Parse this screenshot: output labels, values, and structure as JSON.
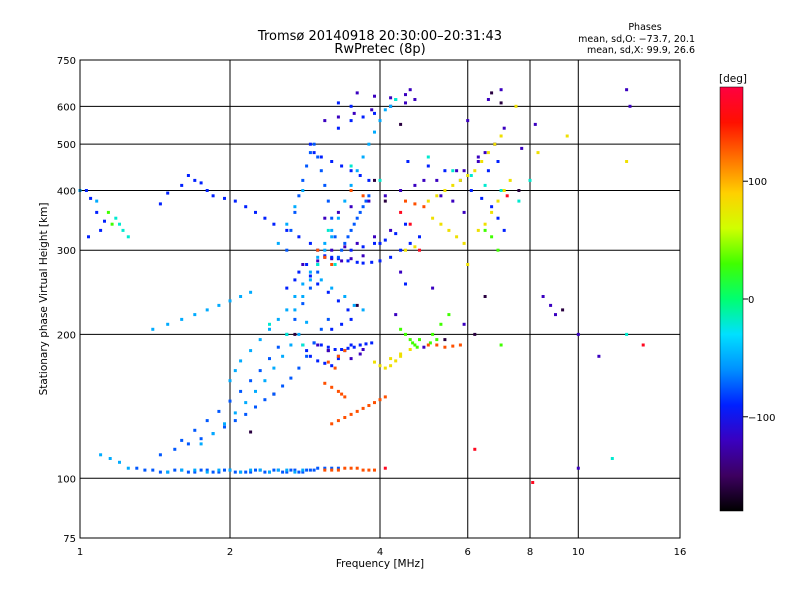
{
  "chart_data": {
    "type": "scatter",
    "title": "Tromsø 20140918 20:30:00–20:31:43",
    "subtitle": "RwPretec (8p)",
    "xlabel": "Frequency [MHz]",
    "ylabel": "Stationary phase Virtual Height [km]",
    "x_scale": "log",
    "y_scale": "log",
    "xlim": [
      1,
      16
    ],
    "ylim": [
      75,
      750
    ],
    "grid": true,
    "x_ticks": [
      1,
      2,
      4,
      6,
      8,
      10,
      16
    ],
    "x_tick_labels": [
      "1",
      "2",
      "4",
      "6",
      "8",
      "10",
      "16"
    ],
    "y_ticks": [
      75,
      100,
      200,
      300,
      400,
      500,
      600,
      750
    ],
    "y_tick_labels": [
      "75",
      "100",
      "200",
      "300",
      "400",
      "500",
      "600",
      "750"
    ],
    "phases_legend": {
      "title": "Phases",
      "line1": "mean, sd,O: −73.7, 20.1",
      "line2": "mean, sd,X:  99.9, 26.6"
    },
    "colorbar": {
      "label": "[deg]",
      "range": [
        -180,
        180
      ],
      "ticks": [
        100,
        0,
        -100
      ],
      "tick_labels": [
        "100",
        "0",
        "−100"
      ],
      "colors": [
        "#000000",
        "#3d0060",
        "#3a00c0",
        "#0020ff",
        "#0090ff",
        "#00e0ff",
        "#00ff70",
        "#40ff00",
        "#d0ff00",
        "#ffd000",
        "#ff7000",
        "#ff1000",
        "#ff0040"
      ]
    },
    "series": [
      {
        "phase": -160,
        "x": [
          2.2,
          2.45,
          2.7,
          3.15,
          3.6,
          3.9,
          4.1,
          4.4,
          5.4,
          6.2,
          6.7,
          7.0,
          7.6,
          9.3,
          6.5
        ],
        "y": [
          125,
          150,
          200,
          185,
          230,
          420,
          380,
          550,
          195,
          200,
          640,
          610,
          400,
          225,
          240
        ]
      },
      {
        "phase": -120,
        "x": [
          2.8,
          3.0,
          3.1,
          3.2,
          3.35,
          3.5,
          3.7,
          3.2,
          3.4,
          3.6,
          3.9,
          4.2,
          3.1,
          3.3,
          3.5,
          3.8,
          4.1,
          4.4,
          4.7,
          5.2,
          5.7,
          6.3,
          6.5,
          6.8,
          7.1,
          6.0,
          6.6,
          7.0,
          3.1,
          3.3,
          3.55,
          3.85,
          4.2,
          4.5,
          4.7,
          3.6,
          3.9,
          4.2,
          4.5,
          4.6,
          4.9,
          5.3,
          5.6,
          5.9,
          3.0,
          3.15,
          3.3,
          3.5,
          3.65,
          3.7,
          4.9,
          8.5,
          8.8,
          9.0,
          10.0,
          11.0,
          12.5,
          12.7,
          8.2,
          7.7,
          6.3,
          5.9,
          4.4,
          10.0,
          4.3,
          5.9,
          5.1
        ],
        "y": [
          280,
          285,
          290,
          288,
          285,
          288,
          292,
          300,
          305,
          310,
          320,
          330,
          350,
          360,
          370,
          380,
          390,
          400,
          410,
          420,
          440,
          460,
          480,
          500,
          540,
          560,
          620,
          650,
          560,
          570,
          580,
          590,
          600,
          610,
          620,
          640,
          630,
          625,
          635,
          650,
          420,
          390,
          380,
          360,
          190,
          185,
          180,
          178,
          182,
          186,
          188,
          240,
          230,
          220,
          200,
          180,
          650,
          600,
          550,
          490,
          470,
          440,
          270,
          105,
          220,
          210,
          250
        ]
      },
      {
        "phase": -90,
        "x": [
          1.03,
          1.05,
          1.08,
          1.12,
          1.1,
          1.04,
          1.45,
          1.5,
          1.6,
          1.65,
          1.7,
          1.75,
          1.8,
          1.85,
          1.95,
          2.05,
          2.15,
          2.25,
          2.35,
          2.45,
          2.6,
          2.75,
          2.9,
          3.0,
          3.1,
          3.2,
          3.3,
          3.45,
          3.6,
          3.7,
          3.85,
          4.0,
          4.2,
          4.4,
          4.6,
          4.8,
          3.5,
          3.7,
          3.9,
          4.1,
          4.3,
          4.5,
          4.55,
          5.0,
          5.4,
          5.8,
          6.1,
          6.4,
          6.7,
          6.9,
          7.1,
          6.6,
          6.9,
          3.3,
          3.5,
          3.7,
          3.9,
          3.5,
          3.3,
          2.9,
          2.95,
          3.05,
          3.2,
          3.35,
          3.5,
          3.65,
          3.8,
          2.6,
          2.7,
          2.75,
          2.85,
          2.9,
          3.0,
          3.15,
          3.3,
          3.45,
          2.8,
          2.85,
          2.9,
          3.0,
          3.1,
          3.2,
          3.3,
          3.4,
          3.5,
          3.2,
          3.35,
          3.5,
          4.5,
          4.0,
          2.95,
          3.05,
          3.15,
          3.25,
          3.35,
          3.45,
          3.55,
          3.65,
          3.75,
          3.85
        ],
        "y": [
          400,
          385,
          360,
          345,
          330,
          320,
          375,
          395,
          410,
          430,
          420,
          415,
          400,
          390,
          385,
          380,
          370,
          360,
          350,
          340,
          330,
          320,
          310,
          300,
          292,
          290,
          288,
          285,
          283,
          282,
          283,
          285,
          290,
          300,
          310,
          320,
          300,
          305,
          310,
          315,
          325,
          340,
          460,
          450,
          440,
          420,
          400,
          385,
          370,
          350,
          330,
          440,
          460,
          540,
          560,
          570,
          580,
          600,
          610,
          500,
          480,
          470,
          460,
          450,
          440,
          430,
          420,
          250,
          260,
          270,
          280,
          265,
          255,
          245,
          235,
          225,
          190,
          185,
          180,
          176,
          174,
          172,
          178,
          185,
          190,
          205,
          210,
          215,
          255,
          310,
          192,
          190,
          188,
          186,
          186,
          187,
          188,
          190,
          191,
          192
        ]
      },
      {
        "phase": -75,
        "x": [
          1.3,
          1.35,
          1.4,
          1.45,
          1.5,
          1.55,
          1.6,
          1.65,
          1.7,
          1.75,
          1.8,
          1.85,
          1.9,
          1.95,
          2.0,
          2.05,
          2.1,
          2.15,
          2.2,
          2.25,
          2.3,
          2.35,
          2.4,
          2.45,
          2.5,
          2.55,
          2.6,
          2.65,
          2.7,
          2.75,
          2.8,
          2.85,
          2.9,
          2.95,
          3.0,
          3.1,
          3.2,
          3.3,
          1.45,
          1.55,
          1.65,
          1.75,
          1.85,
          1.95,
          2.05,
          2.15,
          2.25,
          2.35,
          2.45,
          2.55,
          2.65,
          2.75,
          2.85,
          2.95,
          3.05,
          3.15,
          1.6,
          1.7,
          1.8,
          1.9,
          2.0,
          2.1,
          2.2,
          2.3,
          2.4,
          2.5,
          2.6,
          2.7,
          2.8,
          2.9,
          3.0,
          2.6,
          2.65,
          2.7,
          2.75,
          2.8,
          2.85,
          2.9,
          2.95,
          3.0,
          3.05,
          3.1,
          3.15,
          3.2,
          3.25,
          3.3,
          3.35,
          3.4,
          3.45,
          3.5,
          3.55,
          3.6,
          3.65,
          3.7,
          3.75,
          3.8
        ],
        "y": [
          105,
          104,
          104,
          103,
          103,
          104,
          104,
          103,
          103,
          104,
          104,
          103,
          103,
          104,
          104,
          103,
          103,
          103,
          103,
          104,
          104,
          103,
          103,
          104,
          104,
          103,
          103,
          104,
          104,
          103,
          103,
          104,
          104,
          104,
          105,
          105,
          105,
          105,
          112,
          115,
          118,
          121,
          124,
          128,
          132,
          136,
          141,
          146,
          150,
          156,
          162,
          170,
          180,
          192,
          205,
          215,
          120,
          126,
          132,
          138,
          145,
          152,
          160,
          168,
          178,
          188,
          200,
          215,
          232,
          250,
          270,
          300,
          330,
          360,
          390,
          420,
          450,
          480,
          500,
          470,
          440,
          410,
          380,
          350,
          320,
          290,
          300,
          310,
          320,
          330,
          340,
          350,
          360,
          370,
          380,
          390
        ]
      },
      {
        "phase": -50,
        "x": [
          1.5,
          1.6,
          1.7,
          1.8,
          1.9,
          2.0,
          2.1,
          2.2,
          2.3,
          2.4,
          2.5,
          2.6,
          2.7,
          2.8,
          1.75,
          1.85,
          1.95,
          2.05,
          2.15,
          2.25,
          2.35,
          2.45,
          2.55,
          2.65,
          2.75,
          2.85,
          2.7,
          2.8,
          2.9,
          3.0,
          3.1,
          3.2,
          2.5,
          2.6,
          2.7,
          2.8,
          1.4,
          1.5,
          1.6,
          1.7,
          1.8,
          1.9,
          2.0,
          2.1,
          2.2,
          2.0,
          2.05,
          2.1,
          2.2,
          2.3,
          2.4,
          2.5,
          2.6,
          2.7,
          2.8,
          2.9,
          3.0,
          3.1,
          3.2,
          3.3,
          3.4,
          3.5,
          3.6,
          3.7,
          3.8,
          3.9,
          4.0,
          4.1,
          4.2,
          4.3,
          1.1,
          1.15,
          1.2,
          1.25,
          1.0,
          1.08,
          3.05,
          3.2,
          3.4,
          3.55,
          3.7
        ],
        "y": [
          103,
          104,
          104,
          103,
          104,
          104,
          103,
          104,
          104,
          103,
          104,
          104,
          103,
          104,
          118,
          124,
          130,
          137,
          144,
          152,
          160,
          170,
          180,
          190,
          200,
          212,
          225,
          240,
          260,
          280,
          300,
          320,
          310,
          340,
          370,
          400,
          205,
          210,
          215,
          220,
          225,
          230,
          235,
          240,
          245,
          160,
          168,
          176,
          185,
          195,
          205,
          215,
          225,
          240,
          255,
          270,
          290,
          310,
          330,
          350,
          380,
          410,
          440,
          470,
          500,
          530,
          560,
          590,
          600,
          620,
          112,
          110,
          108,
          105,
          400,
          380,
          260,
          250,
          240,
          230,
          225
        ]
      },
      {
        "phase": -20,
        "x": [
          1.18,
          1.2,
          1.22,
          1.25,
          2.4,
          2.6,
          2.8,
          3.0,
          3.5,
          4.0,
          4.3,
          5.0,
          5.6,
          6.1,
          6.5,
          7.0,
          7.6,
          8.0,
          11.7,
          12.5,
          3.15,
          3.25
        ],
        "y": [
          350,
          340,
          330,
          320,
          210,
          200,
          190,
          280,
          450,
          420,
          620,
          470,
          440,
          430,
          410,
          400,
          380,
          420,
          110,
          200,
          330,
          280
        ]
      },
      {
        "phase": 30,
        "x": [
          1.14,
          1.16,
          4.4,
          4.5,
          4.6,
          4.65,
          4.7,
          4.75,
          4.8,
          5.1,
          5.3,
          5.5,
          6.5,
          6.7,
          6.9,
          7.0,
          5.05,
          5.2
        ],
        "y": [
          360,
          340,
          205,
          200,
          195,
          192,
          190,
          188,
          195,
          200,
          210,
          220,
          330,
          320,
          300,
          190,
          192,
          195
        ]
      },
      {
        "phase": 80,
        "x": [
          3.9,
          4.0,
          4.1,
          4.2,
          4.3,
          4.4,
          5.0,
          5.2,
          5.4,
          5.6,
          5.8,
          6.0,
          6.2,
          6.4,
          6.6,
          6.8,
          7.0,
          5.1,
          5.3,
          5.5,
          5.7,
          5.9,
          4.5,
          4.7,
          6.3,
          6.5,
          6.7,
          6.9,
          7.1,
          7.3,
          7.5,
          6.0,
          4.2,
          4.4,
          4.6,
          8.3,
          9.5,
          12.5
        ],
        "y": [
          175,
          172,
          170,
          172,
          176,
          180,
          380,
          390,
          400,
          410,
          420,
          430,
          440,
          460,
          480,
          500,
          520,
          350,
          340,
          330,
          320,
          310,
          300,
          305,
          330,
          340,
          360,
          380,
          400,
          420,
          600,
          280,
          178,
          182,
          186,
          480,
          520,
          460
        ]
      },
      {
        "phase": 130,
        "x": [
          3.1,
          3.2,
          3.3,
          3.4,
          3.5,
          3.6,
          3.7,
          3.8,
          3.9,
          3.2,
          3.3,
          3.4,
          3.5,
          3.6,
          3.7,
          3.8,
          3.9,
          4.0,
          4.1,
          3.1,
          3.2,
          3.3,
          3.35,
          3.4,
          3.25,
          3.15,
          3.3,
          3.4,
          5.0,
          5.2,
          5.4,
          5.6,
          5.8,
          3.5,
          3.7,
          4.5,
          4.7,
          4.9,
          3.0,
          3.1,
          3.2
        ],
        "y": [
          104,
          104,
          104,
          105,
          105,
          105,
          104,
          104,
          104,
          130,
          132,
          134,
          136,
          138,
          140,
          142,
          144,
          146,
          148,
          158,
          155,
          152,
          150,
          148,
          170,
          175,
          180,
          185,
          190,
          190,
          188,
          189,
          190,
          400,
          390,
          380,
          375,
          370,
          300,
          290,
          280
        ]
      },
      {
        "phase": 165,
        "x": [
          4.1,
          4.4,
          4.6,
          8.1,
          6.2,
          7.2,
          13.5,
          4.8
        ],
        "y": [
          105,
          360,
          340,
          98,
          115,
          390,
          190,
          300
        ]
      }
    ]
  }
}
